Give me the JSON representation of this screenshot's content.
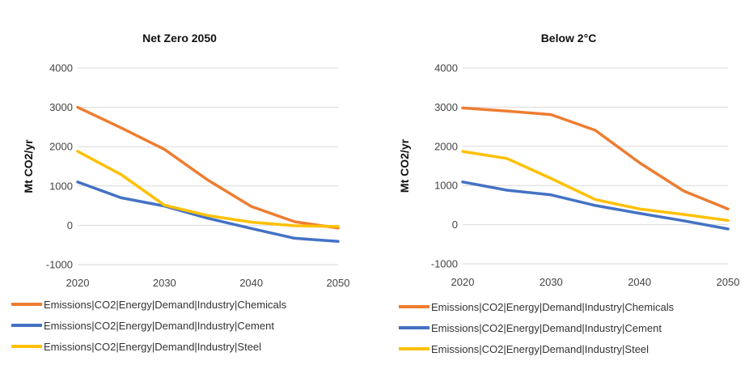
{
  "chart_data": [
    {
      "type": "line",
      "title": "Net Zero 2050",
      "ylabel": "Mt CO2/yr",
      "xlabel": "",
      "x": [
        2020,
        2025,
        2030,
        2035,
        2040,
        2045,
        2050
      ],
      "x_ticks": [
        "2020",
        "2030",
        "2040",
        "2050"
      ],
      "y_ticks": [
        "-1000",
        "0",
        "1000",
        "2000",
        "3000",
        "4000"
      ],
      "ylim": [
        -1000,
        4000
      ],
      "xlim": [
        2020,
        2050
      ],
      "grid": "horizontal",
      "legend_position": "bottom",
      "series": [
        {
          "name": "Emissions|CO2|Energy|Demand|Industry|Chemicals",
          "color": "#ED7D31",
          "values": [
            3000,
            2480,
            1930,
            1150,
            480,
            90,
            -70
          ]
        },
        {
          "name": "Emissions|CO2|Energy|Demand|Industry|Cement",
          "color": "#4472C4",
          "values": [
            1100,
            700,
            490,
            180,
            -80,
            -330,
            -410
          ]
        },
        {
          "name": "Emissions|CO2|Energy|Demand|Industry|Steel",
          "color": "#FFC000",
          "values": [
            1880,
            1290,
            510,
            250,
            80,
            -10,
            -30
          ]
        }
      ]
    },
    {
      "type": "line",
      "title": "Below 2°C",
      "ylabel": "Mt CO2/yr",
      "xlabel": "",
      "x": [
        2020,
        2025,
        2030,
        2035,
        2040,
        2045,
        2050
      ],
      "x_ticks": [
        "2020",
        "2030",
        "2040",
        "2050"
      ],
      "y_ticks": [
        "-1000",
        "0",
        "1000",
        "2000",
        "3000",
        "4000"
      ],
      "ylim": [
        -1000,
        4000
      ],
      "xlim": [
        2020,
        2050
      ],
      "grid": "horizontal",
      "legend_position": "bottom",
      "series": [
        {
          "name": "Emissions|CO2|Energy|Demand|Industry|Chemicals",
          "color": "#ED7D31",
          "values": [
            2980,
            2900,
            2810,
            2410,
            1580,
            860,
            400
          ]
        },
        {
          "name": "Emissions|CO2|Energy|Demand|Industry|Cement",
          "color": "#4472C4",
          "values": [
            1090,
            880,
            760,
            490,
            290,
            100,
            -110
          ]
        },
        {
          "name": "Emissions|CO2|Energy|Demand|Industry|Steel",
          "color": "#FFC000",
          "values": [
            1870,
            1690,
            1180,
            640,
            400,
            260,
            110
          ]
        }
      ]
    }
  ]
}
